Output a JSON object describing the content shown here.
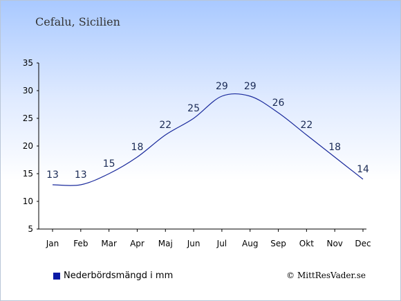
{
  "chart_data": {
    "type": "line",
    "title": "Cefalu, Sicilien",
    "categories": [
      "Jan",
      "Feb",
      "Mar",
      "Apr",
      "Maj",
      "Jun",
      "Jul",
      "Aug",
      "Sep",
      "Okt",
      "Nov",
      "Dec"
    ],
    "series": [
      {
        "name": "Nederbördsmängd i mm",
        "values": [
          13,
          13,
          15,
          18,
          22,
          25,
          29,
          29,
          26,
          22,
          18,
          14
        ]
      }
    ],
    "ylim": [
      5,
      35
    ],
    "yticks": [
      5,
      10,
      15,
      20,
      25,
      30,
      35
    ],
    "grid": false,
    "legend_position": "bottom-left",
    "line_color": "#1a2a9c",
    "legend_color": "#0a1aa5"
  },
  "copyright": "© MittResVader.se"
}
